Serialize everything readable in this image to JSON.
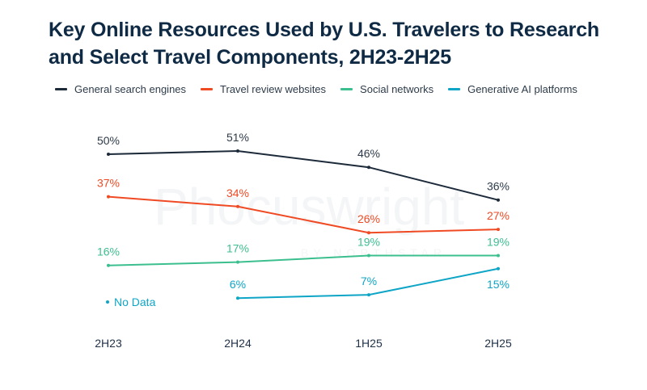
{
  "chart_data": {
    "type": "line",
    "title": "Key Online Resources Used by U.S. Travelers to Research and Select Travel Components, 2H23-2H25",
    "categories": [
      "2H23",
      "2H24",
      "1H25",
      "2H25"
    ],
    "xlabel": "",
    "ylabel": "",
    "ylim": [
      0,
      60
    ],
    "grid": false,
    "legend_position": "top-left",
    "value_suffix": "%",
    "series": [
      {
        "name": "General search engines",
        "color": "#1c2a3a",
        "values": [
          50,
          51,
          46,
          36
        ],
        "label_position": "above"
      },
      {
        "name": "Travel review websites",
        "color": "#f04a24",
        "values": [
          37,
          34,
          26,
          27
        ],
        "label_position": "above"
      },
      {
        "name": "Social networks",
        "color": "#3cbf8f",
        "values": [
          16,
          17,
          19,
          19
        ],
        "label_position": "above"
      },
      {
        "name": "Generative AI platforms",
        "color": "#0ea5c6",
        "values": [
          null,
          6,
          7,
          15
        ],
        "label_position": "mixed"
      }
    ],
    "annotations": [
      {
        "text": "No Data",
        "series": "Generative AI platforms",
        "category": "2H23"
      }
    ],
    "watermark": {
      "brand": "Phocuswright",
      "sub": "BY NORTHSTAR"
    }
  }
}
